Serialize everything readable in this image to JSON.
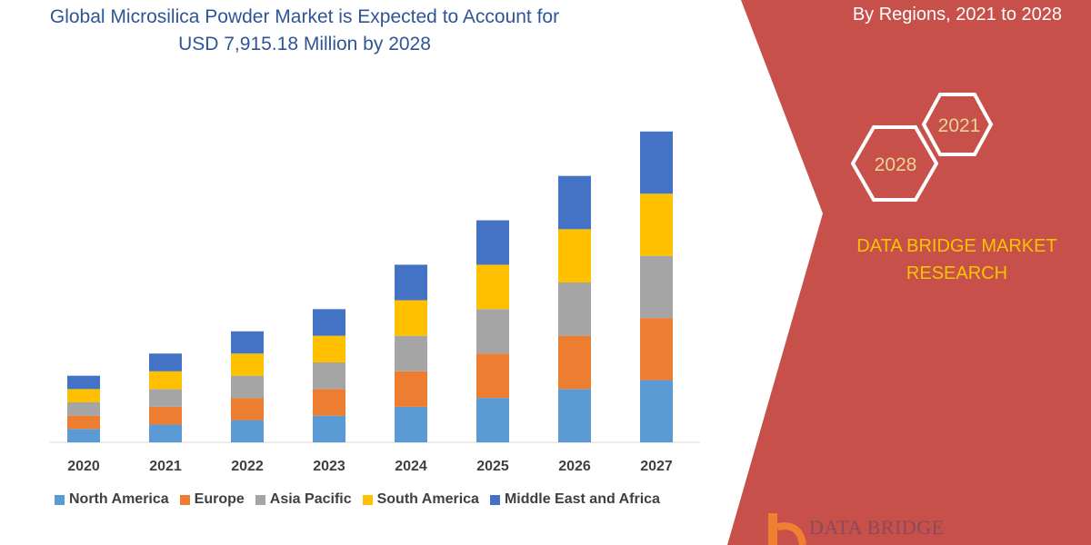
{
  "header": {
    "title_line1": "Global Microsilica Powder Market is Expected to Account for",
    "title_line2": "USD 7,915.18 Million by 2028",
    "subtitle": "By Regions, 2021 to 2028"
  },
  "badges": {
    "year_a": "2028",
    "year_b": "2021"
  },
  "brand": {
    "line1": "DATA BRIDGE MARKET",
    "line2": "RESEARCH",
    "logo_text": "DATA BRIDGE"
  },
  "colors": {
    "panel": "#c8504a",
    "brand_text": "#f7c500",
    "title": "#2f5597"
  },
  "chart_data": {
    "type": "bar",
    "stacked": true,
    "categories": [
      "2020",
      "2021",
      "2022",
      "2023",
      "2024",
      "2025",
      "2026",
      "2027"
    ],
    "series": [
      {
        "name": "North America",
        "color": "#5b9bd5",
        "values": [
          15,
          20,
          25,
          30,
          40,
          50,
          60,
          70
        ]
      },
      {
        "name": "Europe",
        "color": "#ed7d31",
        "values": [
          15,
          20,
          25,
          30,
          40,
          50,
          60,
          70
        ]
      },
      {
        "name": "Asia Pacific",
        "color": "#a5a5a5",
        "values": [
          15,
          20,
          25,
          30,
          40,
          50,
          60,
          70
        ]
      },
      {
        "name": "South America",
        "color": "#ffc000",
        "values": [
          15,
          20,
          25,
          30,
          40,
          50,
          60,
          70
        ]
      },
      {
        "name": "Middle East and Africa",
        "color": "#4472c4",
        "values": [
          15,
          20,
          25,
          30,
          40,
          50,
          60,
          70
        ]
      }
    ],
    "ylim": [
      0,
      360
    ],
    "y_axis_visible": false,
    "grid": false,
    "legend": "bottom"
  }
}
